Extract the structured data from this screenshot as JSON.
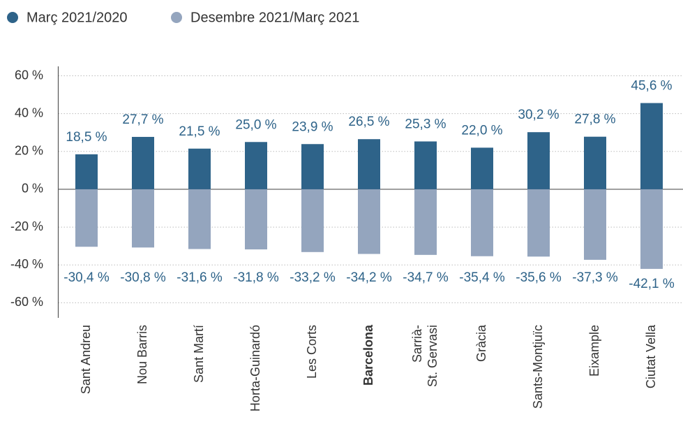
{
  "chart_data": {
    "type": "bar",
    "categories": [
      "Sant Andreu",
      "Nou Barris",
      "Sant Martí",
      "Horta-Guinardó",
      "Les Corts",
      "Barcelona",
      "Sarrià-\nSt. Gervasi",
      "Gràcia",
      "Sants-Montjuïc",
      "Eixample",
      "Ciutat Vella"
    ],
    "highlight_categories": [
      5
    ],
    "series": [
      {
        "name": "Març 2021/2020",
        "color": "#2e6389",
        "values": [
          18.5,
          27.7,
          21.5,
          25.0,
          23.9,
          26.5,
          25.3,
          22.0,
          30.2,
          27.8,
          45.6
        ],
        "value_labels": [
          "18,5 %",
          "27,7 %",
          "21,5 %",
          "25,0 %",
          "23,9 %",
          "26,5 %",
          "25,3 %",
          "22,0 %",
          "30,2 %",
          "27,8 %",
          "45,6 %"
        ]
      },
      {
        "name": "Desembre 2021/Març 2021",
        "color": "#94a5be",
        "values": [
          -30.4,
          -30.8,
          -31.6,
          -31.8,
          -33.2,
          -34.2,
          -34.7,
          -35.4,
          -35.6,
          -37.3,
          -42.1
        ],
        "value_labels": [
          "-30,4 %",
          "-30,8 %",
          "-31,6 %",
          "-31,8 %",
          "-33,2 %",
          "-34,2 %",
          "-34,7 %",
          "-35,4 %",
          "-35,6 %",
          "-37,3 %",
          "-42,1 %"
        ]
      }
    ],
    "ylim": [
      -68,
      65
    ],
    "yticks": [
      {
        "value": 60,
        "label": "60 %"
      },
      {
        "value": 40,
        "label": "40 %"
      },
      {
        "value": 20,
        "label": "20 %"
      },
      {
        "value": 0,
        "label": "0 %"
      },
      {
        "value": -20,
        "label": "-20 %"
      },
      {
        "value": -40,
        "label": "-40 %"
      },
      {
        "value": -60,
        "label": "-60 %"
      }
    ],
    "grid": true
  }
}
